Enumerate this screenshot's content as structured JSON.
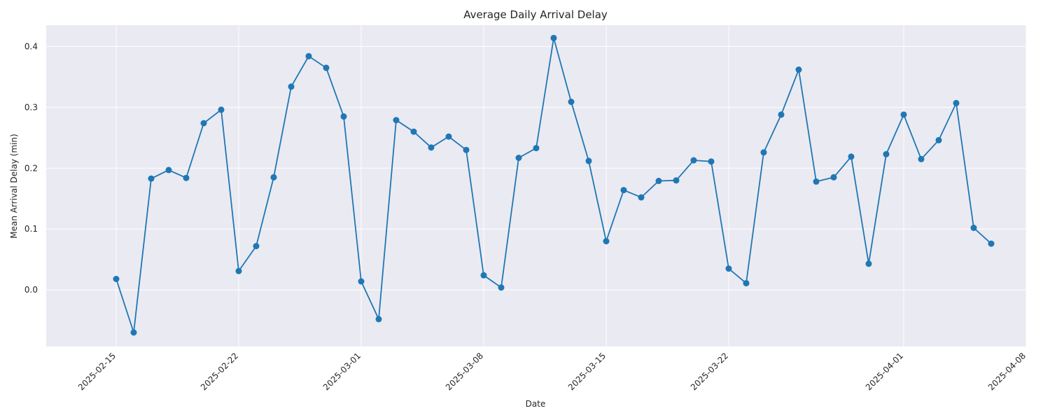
{
  "chart_data": {
    "type": "line",
    "title": "Average Daily Arrival Delay",
    "xlabel": "Date",
    "ylabel": "Mean Arrival Delay (min)",
    "x_ticks": [
      "2025-02-15",
      "2025-02-22",
      "2025-03-01",
      "2025-03-08",
      "2025-03-15",
      "2025-03-22",
      "2025-04-01",
      "2025-04-08"
    ],
    "y_ticks": [
      0.0,
      0.1,
      0.2,
      0.3,
      0.4
    ],
    "y_tick_labels": [
      "0.0",
      "0.1",
      "0.2",
      "0.3",
      "0.4"
    ],
    "ylim": [
      -0.093,
      0.435
    ],
    "xlim": [
      "2025-02-11",
      "2025-04-08"
    ],
    "grid": true,
    "series": [
      {
        "color": "#1f77b4",
        "x": [
          "2025-02-15",
          "2025-02-16",
          "2025-02-17",
          "2025-02-18",
          "2025-02-19",
          "2025-02-20",
          "2025-02-21",
          "2025-02-22",
          "2025-02-23",
          "2025-02-24",
          "2025-02-25",
          "2025-02-26",
          "2025-02-27",
          "2025-02-28",
          "2025-03-01",
          "2025-03-02",
          "2025-03-03",
          "2025-03-04",
          "2025-03-05",
          "2025-03-06",
          "2025-03-07",
          "2025-03-08",
          "2025-03-09",
          "2025-03-10",
          "2025-03-11",
          "2025-03-12",
          "2025-03-13",
          "2025-03-14",
          "2025-03-15",
          "2025-03-16",
          "2025-03-17",
          "2025-03-18",
          "2025-03-19",
          "2025-03-20",
          "2025-03-21",
          "2025-03-22",
          "2025-03-23",
          "2025-03-24",
          "2025-03-25",
          "2025-03-26",
          "2025-03-27",
          "2025-03-28",
          "2025-03-29",
          "2025-03-30",
          "2025-03-31",
          "2025-04-01",
          "2025-04-02",
          "2025-04-03",
          "2025-04-04",
          "2025-04-05",
          "2025-04-06"
        ],
        "values": [
          0.018,
          -0.07,
          0.183,
          0.197,
          0.184,
          0.274,
          0.296,
          0.031,
          0.072,
          0.185,
          0.334,
          0.384,
          0.365,
          0.285,
          0.014,
          -0.048,
          0.279,
          0.26,
          0.234,
          0.252,
          0.23,
          0.024,
          0.004,
          0.217,
          0.233,
          0.414,
          0.309,
          0.212,
          0.08,
          0.164,
          0.152,
          0.179,
          0.18,
          0.213,
          0.211,
          0.035,
          0.011,
          0.226,
          0.288,
          0.362,
          0.178,
          0.185,
          0.219,
          0.043,
          0.223,
          0.288,
          0.215,
          0.246,
          0.307,
          0.102,
          0.076
        ]
      }
    ]
  }
}
